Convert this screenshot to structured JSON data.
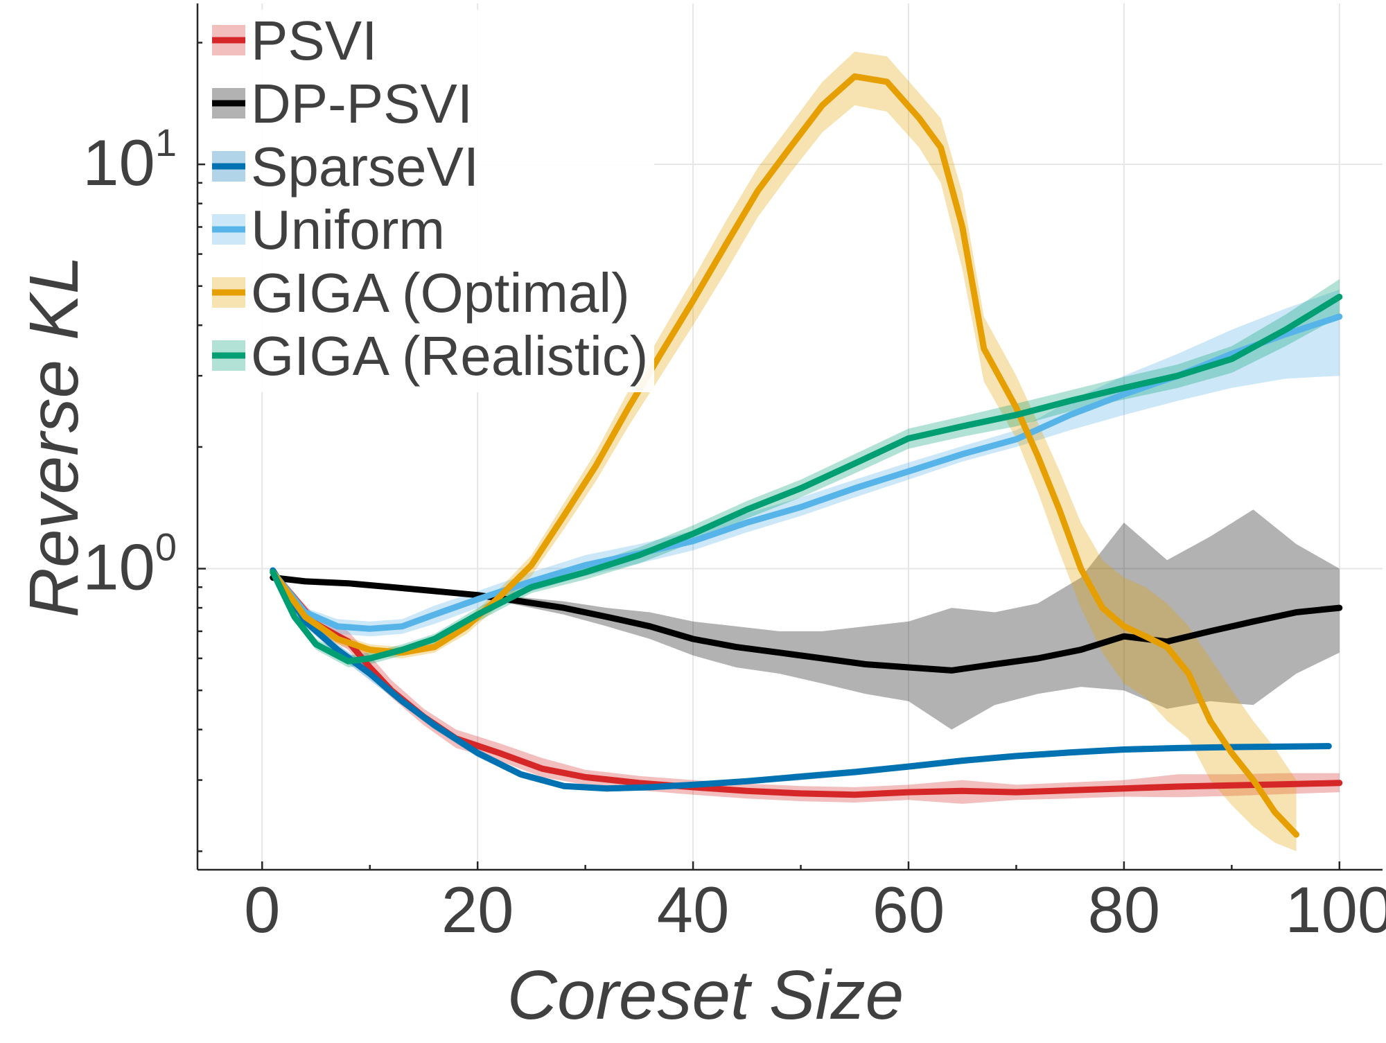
{
  "chart_data": {
    "type": "line",
    "xlabel": "Coreset Size",
    "ylabel": "Reverse KL",
    "xlim": [
      -6,
      104
    ],
    "ylim": [
      0.18,
      25
    ],
    "y_scale": "log",
    "x_ticks": [
      0,
      20,
      40,
      60,
      80,
      100
    ],
    "x_tick_labels": [
      "0",
      "20",
      "40",
      "60",
      "80",
      "100"
    ],
    "y_ticks": [
      1,
      10
    ],
    "y_tick_labels": [
      {
        "base": "10",
        "exp": "0"
      },
      {
        "base": "10",
        "exp": "1"
      }
    ],
    "grid": true,
    "legend_position": "top-left",
    "series": [
      {
        "name": "PSVI",
        "color": "#d62728",
        "x": [
          1,
          5,
          8,
          10,
          12,
          15,
          18,
          22,
          26,
          30,
          35,
          40,
          45,
          50,
          55,
          60,
          65,
          70,
          75,
          80,
          85,
          90,
          95,
          100
        ],
        "y": [
          0.98,
          0.73,
          0.66,
          0.57,
          0.5,
          0.43,
          0.38,
          0.35,
          0.32,
          0.305,
          0.295,
          0.288,
          0.282,
          0.278,
          0.276,
          0.28,
          0.282,
          0.28,
          0.283,
          0.286,
          0.289,
          0.291,
          0.293,
          0.295
        ],
        "lower": [
          0.96,
          0.7,
          0.63,
          0.54,
          0.48,
          0.41,
          0.36,
          0.335,
          0.305,
          0.292,
          0.283,
          0.276,
          0.27,
          0.266,
          0.264,
          0.268,
          0.262,
          0.268,
          0.27,
          0.273,
          0.272,
          0.274,
          0.277,
          0.28
        ],
        "upper": [
          1.0,
          0.76,
          0.7,
          0.61,
          0.53,
          0.45,
          0.4,
          0.37,
          0.34,
          0.318,
          0.307,
          0.3,
          0.294,
          0.29,
          0.288,
          0.292,
          0.3,
          0.292,
          0.296,
          0.3,
          0.31,
          0.31,
          0.312,
          0.312
        ]
      },
      {
        "name": "DP-PSVI",
        "color": "#000000",
        "x": [
          1,
          4,
          8,
          12,
          16,
          20,
          24,
          28,
          32,
          36,
          40,
          44,
          48,
          52,
          56,
          60,
          64,
          68,
          72,
          76,
          80,
          84,
          88,
          92,
          96,
          100
        ],
        "y": [
          0.95,
          0.93,
          0.92,
          0.9,
          0.88,
          0.86,
          0.83,
          0.8,
          0.76,
          0.72,
          0.67,
          0.64,
          0.62,
          0.6,
          0.58,
          0.57,
          0.56,
          0.58,
          0.6,
          0.63,
          0.68,
          0.66,
          0.7,
          0.74,
          0.78,
          0.8
        ],
        "lower": [
          0.94,
          0.92,
          0.91,
          0.89,
          0.87,
          0.85,
          0.81,
          0.77,
          0.72,
          0.67,
          0.61,
          0.57,
          0.55,
          0.52,
          0.49,
          0.47,
          0.4,
          0.46,
          0.49,
          0.51,
          0.5,
          0.45,
          0.47,
          0.46,
          0.55,
          0.62
        ],
        "upper": [
          0.96,
          0.94,
          0.93,
          0.91,
          0.89,
          0.87,
          0.85,
          0.83,
          0.8,
          0.78,
          0.74,
          0.72,
          0.7,
          0.7,
          0.72,
          0.74,
          0.8,
          0.78,
          0.82,
          0.95,
          1.3,
          1.05,
          1.2,
          1.4,
          1.15,
          1.0
        ]
      },
      {
        "name": "SparseVI",
        "color": "#0072b2",
        "x": [
          1,
          4,
          7,
          10,
          13,
          16,
          20,
          24,
          28,
          32,
          36,
          40,
          45,
          50,
          55,
          60,
          65,
          70,
          75,
          80,
          85,
          90,
          95,
          99
        ],
        "y": [
          0.99,
          0.74,
          0.63,
          0.55,
          0.47,
          0.41,
          0.35,
          0.31,
          0.29,
          0.286,
          0.288,
          0.292,
          0.298,
          0.306,
          0.314,
          0.324,
          0.335,
          0.344,
          0.351,
          0.357,
          0.36,
          0.362,
          0.363,
          0.364
        ],
        "lower": [
          0.97,
          0.72,
          0.61,
          0.53,
          0.46,
          0.4,
          0.342,
          0.304,
          0.285,
          0.281,
          0.283,
          0.287,
          0.293,
          0.3,
          0.308,
          0.318,
          0.329,
          0.338,
          0.345,
          0.351,
          0.354,
          0.356,
          0.357,
          0.358
        ],
        "upper": [
          1.01,
          0.76,
          0.65,
          0.57,
          0.48,
          0.42,
          0.358,
          0.316,
          0.295,
          0.291,
          0.293,
          0.297,
          0.303,
          0.312,
          0.32,
          0.33,
          0.341,
          0.35,
          0.357,
          0.363,
          0.366,
          0.368,
          0.369,
          0.37
        ]
      },
      {
        "name": "Uniform",
        "color": "#56b4e9",
        "x": [
          1,
          4,
          7,
          10,
          13,
          16,
          20,
          25,
          30,
          35,
          40,
          45,
          50,
          55,
          60,
          65,
          70,
          75,
          80,
          85,
          90,
          95,
          100
        ],
        "y": [
          0.98,
          0.78,
          0.72,
          0.71,
          0.72,
          0.77,
          0.84,
          0.93,
          1.02,
          1.09,
          1.17,
          1.3,
          1.42,
          1.58,
          1.74,
          1.92,
          2.09,
          2.4,
          2.7,
          3.0,
          3.4,
          3.8,
          4.2
        ],
        "lower": [
          0.96,
          0.76,
          0.69,
          0.68,
          0.69,
          0.73,
          0.8,
          0.88,
          0.96,
          1.03,
          1.11,
          1.23,
          1.35,
          1.5,
          1.66,
          1.84,
          2.0,
          2.2,
          2.4,
          2.6,
          2.8,
          2.95,
          3.0
        ],
        "upper": [
          1.0,
          0.8,
          0.75,
          0.74,
          0.75,
          0.81,
          0.88,
          0.98,
          1.08,
          1.15,
          1.24,
          1.37,
          1.5,
          1.66,
          1.83,
          2.01,
          2.2,
          2.6,
          3.0,
          3.4,
          3.9,
          4.4,
          4.9
        ]
      },
      {
        "name": "GIGA (Optimal)",
        "color": "#e69f00",
        "x": [
          1,
          4,
          7,
          10,
          13,
          16,
          19,
          22,
          25,
          28,
          31,
          34,
          37,
          40,
          43,
          46,
          49,
          52,
          55,
          58,
          61,
          63,
          65,
          67,
          70,
          72,
          74,
          76,
          78,
          80,
          82,
          84,
          86,
          88,
          90,
          92,
          94,
          96
        ],
        "y": [
          0.98,
          0.76,
          0.67,
          0.63,
          0.62,
          0.64,
          0.72,
          0.85,
          1.02,
          1.35,
          1.8,
          2.5,
          3.4,
          4.6,
          6.3,
          8.6,
          11.0,
          14.0,
          16.5,
          16.0,
          13.0,
          11.0,
          7.0,
          3.5,
          2.5,
          1.9,
          1.4,
          1.0,
          0.8,
          0.72,
          0.68,
          0.64,
          0.55,
          0.42,
          0.35,
          0.3,
          0.25,
          0.22
        ],
        "lower": [
          0.96,
          0.74,
          0.65,
          0.61,
          0.6,
          0.62,
          0.69,
          0.81,
          0.96,
          1.25,
          1.65,
          2.25,
          3.0,
          4.0,
          5.4,
          7.4,
          9.5,
          12.0,
          14.0,
          13.5,
          11.0,
          9.0,
          5.5,
          2.9,
          2.1,
          1.55,
          1.1,
          0.8,
          0.62,
          0.52,
          0.48,
          0.42,
          0.38,
          0.3,
          0.26,
          0.23,
          0.21,
          0.2
        ],
        "upper": [
          1.0,
          0.78,
          0.69,
          0.65,
          0.64,
          0.66,
          0.75,
          0.89,
          1.08,
          1.45,
          1.95,
          2.75,
          3.8,
          5.2,
          7.2,
          9.8,
          12.5,
          16.0,
          19.0,
          18.5,
          15.0,
          13.0,
          8.5,
          4.2,
          3.0,
          2.3,
          1.75,
          1.3,
          1.05,
          0.95,
          0.9,
          0.82,
          0.72,
          0.6,
          0.5,
          0.42,
          0.36,
          0.3
        ]
      },
      {
        "name": "GIGA (Realistic)",
        "color": "#009e73",
        "x": [
          1,
          3,
          5,
          8,
          10,
          13,
          16,
          20,
          25,
          30,
          35,
          40,
          45,
          50,
          55,
          60,
          65,
          70,
          75,
          80,
          85,
          90,
          95,
          100
        ],
        "y": [
          0.98,
          0.76,
          0.65,
          0.59,
          0.6,
          0.63,
          0.67,
          0.77,
          0.9,
          0.98,
          1.08,
          1.22,
          1.4,
          1.58,
          1.82,
          2.1,
          2.25,
          2.4,
          2.6,
          2.8,
          3.0,
          3.3,
          3.9,
          4.7
        ],
        "lower": [
          0.96,
          0.74,
          0.63,
          0.57,
          0.58,
          0.61,
          0.65,
          0.74,
          0.87,
          0.94,
          1.03,
          1.16,
          1.33,
          1.5,
          1.72,
          1.98,
          2.12,
          2.25,
          2.45,
          2.62,
          2.8,
          3.05,
          3.55,
          4.2
        ],
        "upper": [
          1.0,
          0.78,
          0.67,
          0.61,
          0.62,
          0.65,
          0.69,
          0.8,
          0.93,
          1.02,
          1.13,
          1.28,
          1.47,
          1.66,
          1.92,
          2.22,
          2.38,
          2.56,
          2.76,
          2.98,
          3.2,
          3.55,
          4.25,
          5.2
        ]
      }
    ]
  }
}
